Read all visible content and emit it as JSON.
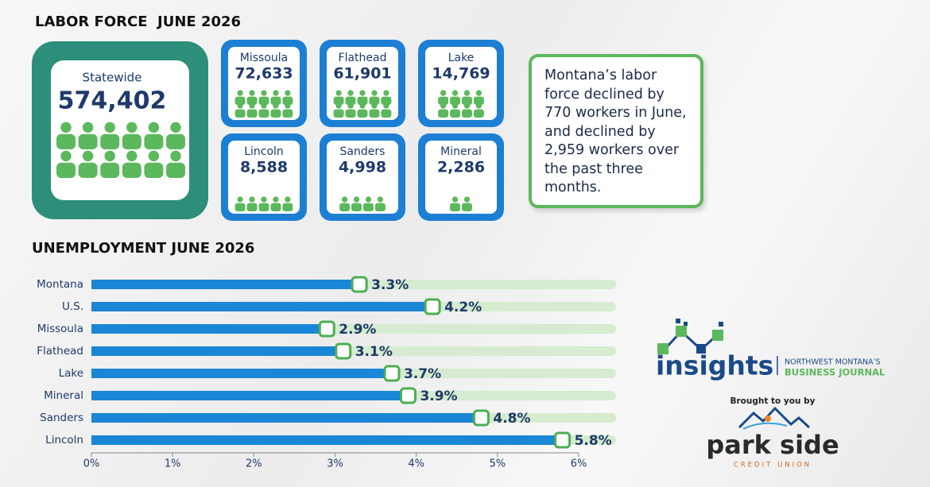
{
  "labor_force": {
    "title": "LABOR FORCE  JUNE 2026",
    "cards": [
      {
        "label": "Statewide",
        "value": "574,402"
      },
      {
        "label": "Missoula",
        "value": "72,633"
      },
      {
        "label": "Flathead",
        "value": "61,901"
      },
      {
        "label": "Lake",
        "value": "14,769"
      },
      {
        "label": "Lincoln",
        "value": "8,588"
      },
      {
        "label": "Sanders",
        "value": "4,998"
      },
      {
        "label": "Mineral",
        "value": "2,286"
      }
    ],
    "note": "Montana’s labor force declined by 770 workers in June, and declined by 2,959 workers over the past three months."
  },
  "chart_data": {
    "type": "bar",
    "orientation": "horizontal",
    "title": "UNEMPLOYMENT JUNE 2026",
    "categories": [
      "Montana",
      "U.S.",
      "Missoula",
      "Flathead",
      "Lake",
      "Mineral",
      "Sanders",
      "Lincoln"
    ],
    "values": [
      3.3,
      4.2,
      2.9,
      3.1,
      3.7,
      3.9,
      4.8,
      5.8
    ],
    "value_labels": [
      "3.3%",
      "4.2%",
      "2.9%",
      "3.1%",
      "3.7%",
      "3.9%",
      "4.8%",
      "5.8%"
    ],
    "color": "#1a86d6",
    "xlim": [
      0,
      6
    ],
    "xticks": [
      {
        "value": 0,
        "label": "0%"
      },
      {
        "value": 1,
        "label": "1%"
      },
      {
        "value": 2,
        "label": "2%"
      },
      {
        "value": 3,
        "label": "3%"
      },
      {
        "value": 4,
        "label": "4%"
      },
      {
        "value": 5,
        "label": "5%"
      },
      {
        "value": 6,
        "label": "6%"
      }
    ]
  },
  "branding": {
    "logo": "insights",
    "tagline_top": "NORTHWEST MONTANA’S",
    "tagline_bottom": "BUSINESS JOURNAL",
    "sponsor_intro": "Brought to you by",
    "sponsor": "park side",
    "sponsor_sub": "CREDIT UNION"
  }
}
